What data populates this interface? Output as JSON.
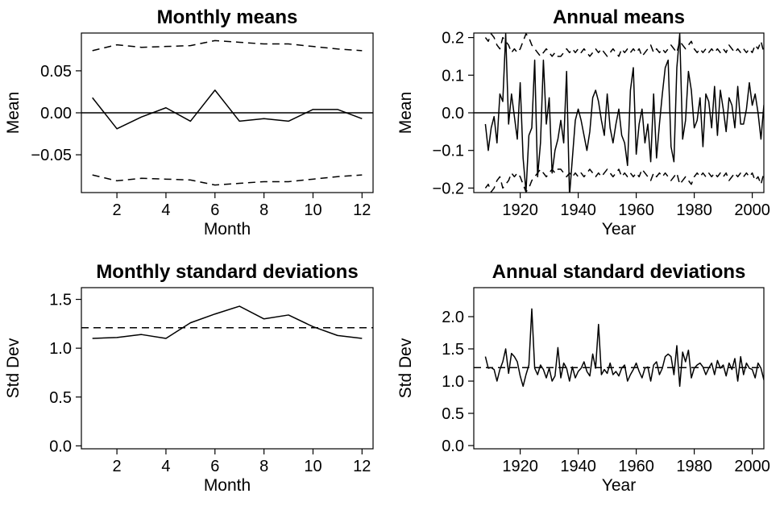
{
  "chart_data": [
    {
      "type": "line",
      "title": "Monthly means",
      "xlabel": "Month",
      "ylabel": "Mean",
      "xlim": [
        0.55,
        12.45
      ],
      "ylim": [
        -0.095,
        0.095
      ],
      "xticks": [
        2,
        4,
        6,
        8,
        10,
        12
      ],
      "xtick_labels": [
        "2",
        "4",
        "6",
        "8",
        "10",
        "12"
      ],
      "yticks": [
        -0.05,
        0.0,
        0.05
      ],
      "ytick_labels": [
        "−0.05",
        "0.00",
        "0.05"
      ],
      "grid": false,
      "reference_line": 0,
      "x": [
        1,
        2,
        3,
        4,
        5,
        6,
        7,
        8,
        9,
        10,
        11,
        12
      ],
      "series": [
        {
          "style": "solid",
          "values": [
            0.018,
            -0.019,
            -0.005,
            0.006,
            -0.01,
            0.027,
            -0.01,
            -0.007,
            -0.01,
            0.004,
            0.004,
            -0.007
          ]
        },
        {
          "style": "dashed",
          "values": [
            0.074,
            0.081,
            0.078,
            0.079,
            0.08,
            0.086,
            0.084,
            0.082,
            0.082,
            0.079,
            0.076,
            0.074
          ]
        },
        {
          "style": "dashed",
          "values": [
            -0.074,
            -0.081,
            -0.078,
            -0.079,
            -0.08,
            -0.086,
            -0.084,
            -0.082,
            -0.082,
            -0.079,
            -0.076,
            -0.074
          ]
        }
      ]
    },
    {
      "type": "line",
      "title": "Annual means",
      "xlabel": "Year",
      "ylabel": "Mean",
      "xlim": [
        1904,
        2004
      ],
      "ylim": [
        -0.212,
        0.212
      ],
      "xticks": [
        1920,
        1940,
        1960,
        1980,
        2000
      ],
      "xtick_labels": [
        "1920",
        "1940",
        "1960",
        "1980",
        "2000"
      ],
      "yticks": [
        -0.2,
        -0.1,
        0.0,
        0.1,
        0.2
      ],
      "ytick_labels": [
        "−0.2",
        "−0.1",
        "0.0",
        "0.1",
        "0.2"
      ],
      "grid": false,
      "reference_line": 0,
      "x_start": 1908,
      "series": [
        {
          "style": "solid",
          "values": [
            -0.03,
            -0.1,
            -0.04,
            -0.01,
            -0.08,
            0.05,
            0.03,
            0.21,
            -0.03,
            0.05,
            -0.01,
            -0.07,
            0.08,
            -0.12,
            -0.21,
            -0.06,
            -0.04,
            0.14,
            -0.17,
            -0.08,
            0.14,
            -0.03,
            0.04,
            -0.16,
            -0.1,
            -0.07,
            -0.02,
            -0.08,
            0.11,
            -0.22,
            -0.12,
            -0.02,
            0.01,
            -0.02,
            -0.06,
            -0.1,
            -0.05,
            0.04,
            0.06,
            0.03,
            -0.02,
            -0.06,
            0.05,
            -0.04,
            -0.08,
            -0.03,
            0.01,
            -0.06,
            -0.08,
            -0.14,
            0.06,
            0.12,
            -0.11,
            -0.03,
            0.01,
            -0.08,
            -0.03,
            -0.13,
            0.05,
            -0.12,
            -0.03,
            0.05,
            0.12,
            0.14,
            -0.09,
            -0.13,
            0.12,
            0.21,
            -0.07,
            -0.02,
            0.11,
            0.06,
            -0.04,
            -0.02,
            0.04,
            -0.09,
            0.05,
            0.03,
            -0.04,
            0.07,
            -0.06,
            0.06,
            0.01,
            -0.05,
            0.04,
            0.02,
            -0.04,
            0.07,
            -0.03,
            -0.03,
            0.01,
            0.08,
            0.02,
            0.05,
            0.0,
            -0.07,
            0.02,
            0.01,
            0.08
          ]
        },
        {
          "style": "dashed",
          "values": [
            0.2,
            0.19,
            0.21,
            0.2,
            0.18,
            0.17,
            0.2,
            0.19,
            0.18,
            0.16,
            0.17,
            0.16,
            0.17,
            0.19,
            0.21,
            0.2,
            0.18,
            0.17,
            0.16,
            0.15,
            0.16,
            0.17,
            0.16,
            0.15,
            0.16,
            0.15,
            0.15,
            0.16,
            0.17,
            0.16,
            0.17,
            0.16,
            0.17,
            0.16,
            0.17,
            0.16,
            0.15,
            0.16,
            0.17,
            0.16,
            0.17,
            0.16,
            0.15,
            0.16,
            0.17,
            0.16,
            0.15,
            0.17,
            0.16,
            0.17,
            0.16,
            0.17,
            0.16,
            0.17,
            0.15,
            0.16,
            0.17,
            0.18,
            0.16,
            0.17,
            0.16,
            0.17,
            0.16,
            0.17,
            0.18,
            0.17,
            0.16,
            0.19,
            0.18,
            0.17,
            0.18,
            0.19,
            0.17,
            0.16,
            0.17,
            0.16,
            0.17,
            0.16,
            0.17,
            0.16,
            0.17,
            0.16,
            0.17,
            0.16,
            0.18,
            0.17,
            0.16,
            0.17,
            0.16,
            0.17,
            0.16,
            0.17,
            0.16,
            0.18,
            0.17,
            0.19,
            0.16,
            0.17,
            0.19
          ]
        },
        {
          "style": "dashed",
          "values": [
            -0.2,
            -0.19,
            -0.21,
            -0.2,
            -0.18,
            -0.17,
            -0.2,
            -0.19,
            -0.18,
            -0.16,
            -0.17,
            -0.16,
            -0.17,
            -0.19,
            -0.21,
            -0.2,
            -0.18,
            -0.17,
            -0.16,
            -0.15,
            -0.16,
            -0.17,
            -0.16,
            -0.15,
            -0.16,
            -0.15,
            -0.15,
            -0.16,
            -0.17,
            -0.16,
            -0.17,
            -0.16,
            -0.17,
            -0.16,
            -0.17,
            -0.16,
            -0.15,
            -0.16,
            -0.17,
            -0.16,
            -0.17,
            -0.16,
            -0.15,
            -0.16,
            -0.17,
            -0.16,
            -0.15,
            -0.17,
            -0.16,
            -0.17,
            -0.16,
            -0.17,
            -0.16,
            -0.17,
            -0.15,
            -0.16,
            -0.17,
            -0.18,
            -0.16,
            -0.17,
            -0.16,
            -0.17,
            -0.16,
            -0.17,
            -0.18,
            -0.17,
            -0.16,
            -0.19,
            -0.18,
            -0.17,
            -0.18,
            -0.19,
            -0.17,
            -0.16,
            -0.17,
            -0.16,
            -0.17,
            -0.16,
            -0.17,
            -0.16,
            -0.17,
            -0.16,
            -0.17,
            -0.16,
            -0.18,
            -0.17,
            -0.16,
            -0.17,
            -0.16,
            -0.17,
            -0.16,
            -0.17,
            -0.16,
            -0.18,
            -0.17,
            -0.19,
            -0.16,
            -0.17,
            -0.19
          ]
        }
      ]
    },
    {
      "type": "line",
      "title": "Monthly standard deviations",
      "xlabel": "Month",
      "ylabel": "Std Dev",
      "xlim": [
        0.55,
        12.45
      ],
      "ylim": [
        -0.03,
        1.62
      ],
      "xticks": [
        2,
        4,
        6,
        8,
        10,
        12
      ],
      "xtick_labels": [
        "2",
        "4",
        "6",
        "8",
        "10",
        "12"
      ],
      "yticks": [
        0.0,
        0.5,
        1.0,
        1.5
      ],
      "ytick_labels": [
        "0.0",
        "0.5",
        "1.0",
        "1.5"
      ],
      "grid": false,
      "reference_line": 1.21,
      "reference_style": "dashed",
      "x": [
        1,
        2,
        3,
        4,
        5,
        6,
        7,
        8,
        9,
        10,
        11,
        12
      ],
      "series": [
        {
          "style": "solid",
          "values": [
            1.1,
            1.11,
            1.14,
            1.1,
            1.26,
            1.35,
            1.43,
            1.3,
            1.34,
            1.22,
            1.13,
            1.1
          ]
        }
      ]
    },
    {
      "type": "line",
      "title": "Annual standard deviations",
      "xlabel": "Year",
      "ylabel": "Std Dev",
      "xlim": [
        1904,
        2004
      ],
      "ylim": [
        -0.05,
        2.45
      ],
      "xticks": [
        1920,
        1940,
        1960,
        1980,
        2000
      ],
      "xtick_labels": [
        "1920",
        "1940",
        "1960",
        "1980",
        "2000"
      ],
      "yticks": [
        0.0,
        0.5,
        1.0,
        1.5,
        2.0
      ],
      "ytick_labels": [
        "0.0",
        "0.5",
        "1.0",
        "1.5",
        "2.0"
      ],
      "grid": false,
      "reference_line": 1.21,
      "reference_style": "dashed",
      "x_start": 1908,
      "series": [
        {
          "style": "solid",
          "values": [
            1.38,
            1.2,
            1.21,
            1.18,
            1.0,
            1.18,
            1.3,
            1.5,
            1.12,
            1.43,
            1.38,
            1.3,
            1.08,
            0.92,
            1.1,
            1.25,
            2.12,
            1.2,
            1.1,
            1.25,
            1.18,
            1.05,
            1.2,
            1.0,
            1.08,
            1.52,
            1.05,
            1.28,
            1.2,
            1.0,
            1.22,
            1.05,
            1.15,
            1.2,
            1.3,
            1.15,
            1.08,
            1.42,
            1.2,
            1.88,
            1.1,
            1.18,
            1.12,
            1.28,
            1.1,
            1.15,
            1.08,
            1.2,
            1.25,
            1.0,
            1.1,
            1.18,
            1.28,
            1.15,
            1.05,
            1.2,
            1.22,
            1.0,
            1.25,
            1.3,
            1.1,
            1.2,
            1.38,
            1.42,
            1.38,
            1.1,
            1.55,
            0.92,
            1.45,
            1.3,
            1.48,
            1.05,
            1.2,
            1.25,
            1.28,
            1.22,
            1.1,
            1.2,
            1.28,
            1.1,
            1.32,
            1.2,
            1.25,
            1.08,
            1.28,
            1.18,
            1.35,
            1.0,
            1.38,
            1.1,
            1.28,
            1.2,
            1.18,
            1.05,
            1.28,
            1.2,
            1.02,
            1.25,
            1.3
          ]
        }
      ]
    }
  ]
}
